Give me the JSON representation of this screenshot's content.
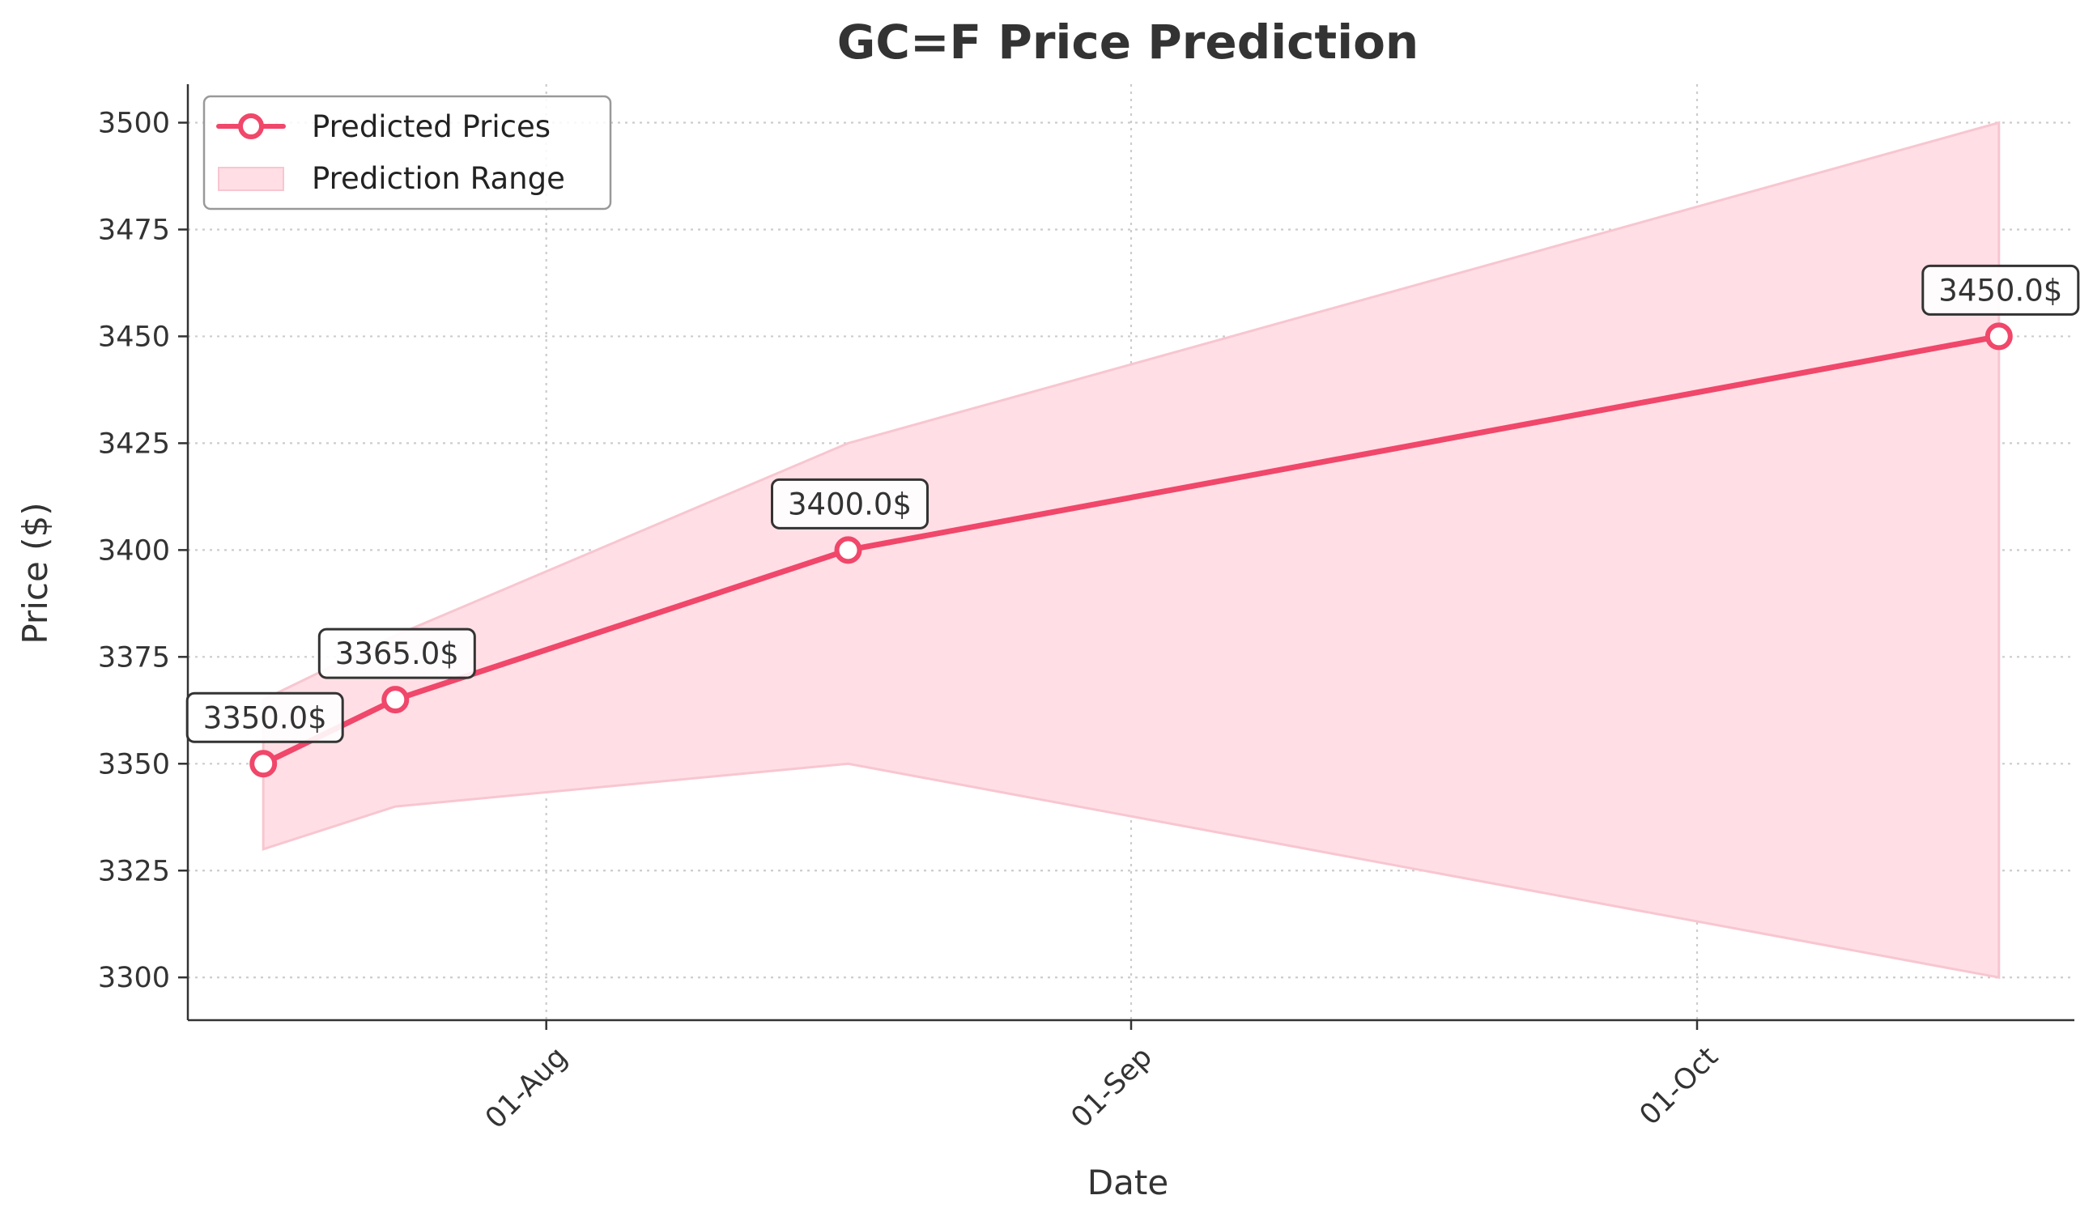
{
  "chart_data": {
    "type": "line",
    "title": "GC=F Price Prediction",
    "xlabel": "Date",
    "ylabel": "Price ($)",
    "x_dates": [
      "2025-07-17",
      "2025-07-24",
      "2025-08-17",
      "2025-10-17"
    ],
    "x_tick_dates": [
      "2025-08-01",
      "2025-09-01",
      "2025-10-01"
    ],
    "x_tick_labels": [
      "01-Aug",
      "01-Sep",
      "01-Oct"
    ],
    "xlim": [
      "2025-07-13",
      "2025-10-21"
    ],
    "ylim": [
      3290,
      3509
    ],
    "y_ticks": [
      3300,
      3325,
      3350,
      3375,
      3400,
      3425,
      3450,
      3475,
      3500
    ],
    "series": [
      {
        "name": "Predicted Prices",
        "values": [
          3350,
          3365,
          3400,
          3450
        ]
      }
    ],
    "range": {
      "name": "Prediction Range",
      "lower": [
        3330,
        3340,
        3350,
        3300
      ],
      "upper": [
        3365,
        3380,
        3425,
        3500
      ]
    },
    "annotations": [
      "3350.0$",
      "3365.0$",
      "3400.0$",
      "3450.0$"
    ],
    "legend": {
      "placement": "top-left",
      "entries": [
        "Predicted Prices",
        "Prediction Range"
      ]
    },
    "grid": true,
    "colors": {
      "line": "#f0476a",
      "fill": "#ffdfe5",
      "grid": "#cccccc",
      "axis": "#333333"
    }
  }
}
